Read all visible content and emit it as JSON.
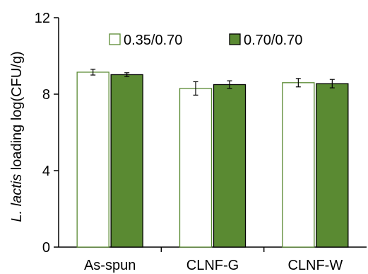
{
  "chart_data": {
    "type": "bar",
    "ylabel_italic": "L. lactis",
    "ylabel_rest": " loading log(CFU/g)",
    "categories": [
      "As-spun",
      "CLNF-G",
      "CLNF-W"
    ],
    "ylim": [
      0,
      12
    ],
    "yticks": [
      0,
      4,
      8,
      12
    ],
    "grid": false,
    "legend_position": "top",
    "series": [
      {
        "name": "0.35/0.70",
        "values": [
          9.15,
          8.3,
          8.6
        ],
        "errors": [
          0.15,
          0.35,
          0.22
        ],
        "fill": "#ffffff",
        "stroke": "#5a8a32"
      },
      {
        "name": "0.70/0.70",
        "values": [
          9.02,
          8.5,
          8.55
        ],
        "errors": [
          0.1,
          0.2,
          0.22
        ],
        "fill": "#5a8a32",
        "stroke": "#000000"
      }
    ]
  }
}
